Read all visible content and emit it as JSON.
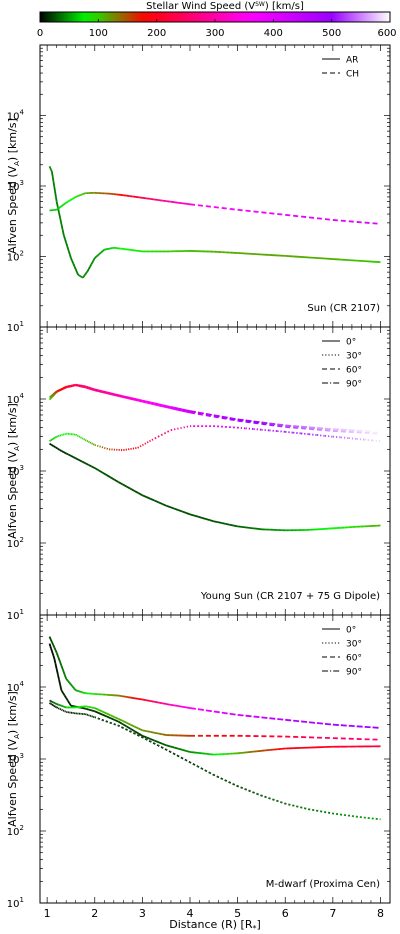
{
  "colorbar": {
    "title": "Stellar Wind Speed (V",
    "title_sup": "SW",
    "title_end": ") [km/s]",
    "ticks": [
      0,
      100,
      200,
      300,
      400,
      500,
      600
    ],
    "range": [
      0,
      600
    ],
    "colors": [
      "#000000",
      "#00ff00",
      "#ff0000",
      "#ff00ff",
      "#9b00ff",
      "#ffffff"
    ]
  },
  "axes": {
    "ylabel": "Alfven Speed (V",
    "ylabel_sub": "A",
    "ylabel_end": ") [km/s]",
    "xlabel": "Distance (R) [R",
    "xlabel_sub": "*",
    "xlabel_end": "]",
    "yscale": "log",
    "ylim": [
      10,
      100000
    ],
    "xlim": [
      0.85,
      8.2
    ],
    "xticks": [
      1,
      2,
      3,
      4,
      5,
      6,
      7,
      8
    ],
    "ytick_labels": [
      "10",
      "10",
      "10",
      "10",
      "10"
    ],
    "ytick_exps": [
      "1",
      "2",
      "3",
      "4",
      ""
    ],
    "ytick_values": [
      10,
      100,
      1000,
      10000
    ]
  },
  "chart_data": [
    {
      "type": "line",
      "title": "Sun (CR 2107)",
      "yscale": "log",
      "legend_position": "top-right",
      "series": [
        {
          "name": "AR",
          "style": "solid",
          "x": [
            1.05,
            1.1,
            1.2,
            1.35,
            1.5,
            1.65,
            1.75,
            1.85,
            2.0,
            2.2,
            2.4,
            2.6,
            3.0,
            3.5,
            4.0,
            4.5,
            5.0,
            6.0,
            7.0,
            8.0
          ],
          "y": [
            1900,
            1600,
            600,
            200,
            95,
            55,
            50,
            62,
            95,
            125,
            133,
            128,
            118,
            118,
            120,
            117,
            112,
            102,
            92,
            83
          ],
          "v": [
            40,
            40,
            40,
            40,
            40,
            40,
            40,
            40,
            45,
            55,
            70,
            80,
            90,
            100,
            105,
            110,
            115,
            115,
            110,
            100
          ]
        },
        {
          "name": "CH",
          "style": "dashed",
          "x": [
            1.05,
            1.2,
            1.4,
            1.6,
            1.8,
            2.0,
            2.3,
            2.6,
            3.0,
            3.5,
            4.0,
            5.0,
            6.0,
            7.0,
            8.0
          ],
          "y": [
            450,
            460,
            580,
            700,
            790,
            800,
            780,
            740,
            680,
            610,
            550,
            460,
            390,
            330,
            290
          ],
          "v": [
            60,
            65,
            75,
            85,
            110,
            130,
            150,
            180,
            230,
            290,
            330,
            370,
            390,
            400,
            410
          ]
        }
      ]
    },
    {
      "type": "line",
      "title": "Young Sun (CR 2107 + 75 G Dipole)",
      "yscale": "log",
      "legend_position": "top-right",
      "series": [
        {
          "name": "0°",
          "style": "solid",
          "x": [
            1.05,
            1.3,
            1.6,
            2.0,
            2.5,
            3.0,
            3.5,
            4.0,
            4.5,
            5.0,
            5.5,
            6.0,
            6.5,
            7.0,
            7.5,
            8.0
          ],
          "y": [
            2400,
            1900,
            1500,
            1100,
            700,
            460,
            330,
            250,
            200,
            170,
            155,
            150,
            152,
            160,
            168,
            175
          ],
          "v": [
            10,
            15,
            20,
            25,
            25,
            25,
            25,
            25,
            25,
            30,
            40,
            50,
            70,
            80,
            95,
            110
          ]
        },
        {
          "name": "30°",
          "style": "dotted",
          "x": [
            1.05,
            1.2,
            1.4,
            1.6,
            1.8,
            2.0,
            2.3,
            2.6,
            2.9,
            3.2,
            3.6,
            4.0,
            4.5,
            5.0,
            6.0,
            7.0,
            8.0
          ],
          "y": [
            2600,
            3000,
            3300,
            3200,
            2700,
            2300,
            2000,
            1950,
            2100,
            2700,
            3700,
            4200,
            4200,
            4000,
            3500,
            3000,
            2600
          ],
          "v": [
            60,
            70,
            80,
            90,
            100,
            120,
            150,
            180,
            200,
            230,
            270,
            320,
            380,
            430,
            480,
            530,
            590
          ]
        },
        {
          "name": "60°",
          "style": "dashed",
          "x": [
            1.05,
            1.2,
            1.4,
            1.6,
            1.8,
            2.0,
            2.5,
            3.0,
            3.5,
            4.0,
            5.0,
            6.0,
            7.0,
            8.0
          ],
          "y": [
            9800,
            12500,
            14500,
            15500,
            14500,
            13200,
            11000,
            9200,
            7700,
            6500,
            5000,
            4100,
            3600,
            3300
          ],
          "v": [
            100,
            150,
            200,
            230,
            250,
            270,
            300,
            340,
            380,
            420,
            470,
            520,
            560,
            590
          ]
        },
        {
          "name": "90°",
          "style": "dashdot",
          "x": [
            1.05,
            1.2,
            1.4,
            1.6,
            1.8,
            2.0,
            2.5,
            3.0,
            3.5,
            4.0,
            5.0,
            6.0,
            7.0,
            8.0
          ],
          "y": [
            10500,
            12800,
            14800,
            15800,
            15000,
            13600,
            11300,
            9500,
            8000,
            6800,
            5200,
            4300,
            3800,
            3500
          ],
          "v": [
            110,
            160,
            210,
            240,
            260,
            280,
            310,
            350,
            390,
            430,
            480,
            530,
            570,
            600
          ]
        }
      ]
    },
    {
      "type": "line",
      "title": "M-dwarf (Proxima Cen)",
      "yscale": "log",
      "legend_position": "top-right",
      "series": [
        {
          "name": "0°",
          "style": "solid",
          "x": [
            1.05,
            1.15,
            1.3,
            1.5,
            1.8,
            2.0,
            2.5,
            3.0,
            3.5,
            4.0,
            4.5,
            5.0,
            5.5,
            6.0,
            7.0,
            8.0
          ],
          "y": [
            40000,
            25000,
            9000,
            5500,
            5000,
            4600,
            3300,
            2100,
            1550,
            1250,
            1150,
            1200,
            1300,
            1400,
            1480,
            1500
          ],
          "v": [
            0,
            5,
            10,
            12,
            15,
            15,
            20,
            20,
            30,
            45,
            70,
            110,
            150,
            190,
            210,
            220
          ]
        },
        {
          "name": "30°",
          "style": "dotted",
          "x": [
            1.05,
            1.2,
            1.4,
            1.6,
            1.8,
            2.0,
            2.5,
            3.0,
            3.5,
            4.0,
            4.5,
            5.0,
            5.5,
            6.0,
            6.5,
            7.0,
            7.5,
            8.0
          ],
          "y": [
            6000,
            5200,
            4500,
            4300,
            4200,
            3800,
            2900,
            2000,
            1350,
            900,
            600,
            420,
            310,
            240,
            200,
            175,
            158,
            145
          ],
          "v": [
            0,
            5,
            10,
            12,
            15,
            15,
            15,
            15,
            15,
            15,
            20,
            20,
            25,
            30,
            35,
            40,
            45,
            50
          ]
        },
        {
          "name": "60°",
          "style": "dashed",
          "x": [
            1.05,
            1.2,
            1.4,
            1.6,
            1.8,
            2.0,
            2.5,
            3.0,
            3.5,
            4.0,
            5.0,
            6.0,
            7.0,
            8.0
          ],
          "y": [
            6500,
            5800,
            5200,
            5200,
            5400,
            5100,
            3600,
            2500,
            2150,
            2100,
            2100,
            2050,
            1950,
            1850
          ],
          "v": [
            20,
            40,
            60,
            80,
            90,
            100,
            110,
            120,
            140,
            160,
            200,
            230,
            250,
            260
          ]
        },
        {
          "name": "90°",
          "style": "dashdot",
          "x": [
            1.05,
            1.2,
            1.4,
            1.6,
            1.8,
            2.0,
            2.5,
            3.0,
            3.5,
            4.0,
            5.0,
            6.0,
            7.0,
            8.0
          ],
          "y": [
            50000,
            30000,
            13000,
            9000,
            8200,
            8000,
            7600,
            6700,
            5800,
            5100,
            4100,
            3500,
            3000,
            2700
          ],
          "v": [
            20,
            30,
            40,
            50,
            70,
            90,
            130,
            200,
            300,
            360,
            420,
            460,
            480,
            500
          ]
        }
      ]
    }
  ]
}
